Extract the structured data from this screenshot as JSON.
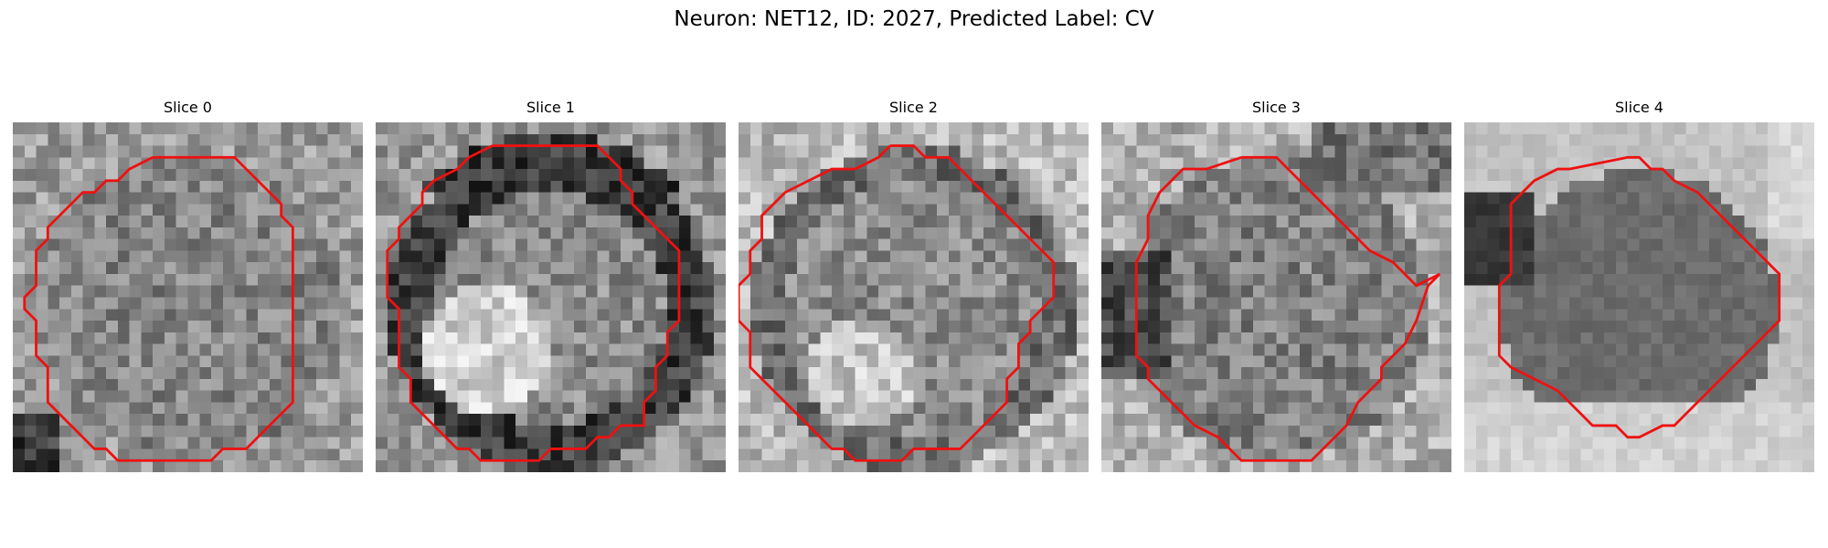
{
  "figure": {
    "title": "Neuron: NET12, ID: 2027, Predicted Label: CV"
  },
  "contour_color": "#ee1111",
  "panels": [
    {
      "title": "Slice 0",
      "seed": 11,
      "style": "fine"
    },
    {
      "title": "Slice 1",
      "seed": 23,
      "style": "ring"
    },
    {
      "title": "Slice 2",
      "seed": 37,
      "style": "soft"
    },
    {
      "title": "Slice 3",
      "seed": 41,
      "style": "dark-left"
    },
    {
      "title": "Slice 4",
      "seed": 59,
      "style": "smooth"
    }
  ]
}
